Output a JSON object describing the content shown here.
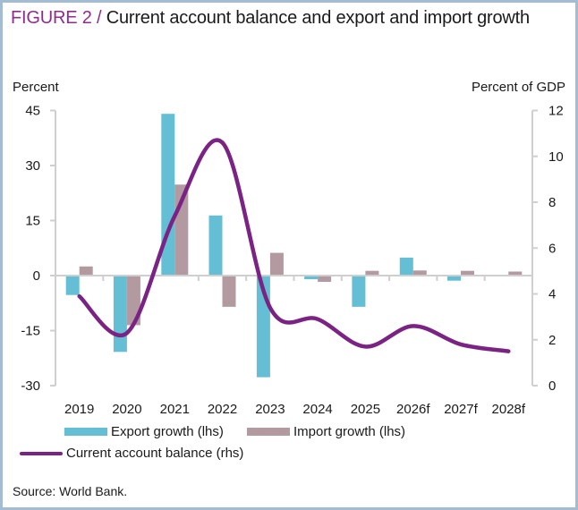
{
  "figure": {
    "label": "FIGURE 2 /",
    "title": " Current account balance and export and import growth",
    "source": "Source: World Bank."
  },
  "colors": {
    "export": "#65bfd4",
    "import": "#b39aa0",
    "current_account": "#7b2385",
    "axis": "#cfcfcf",
    "title_accent": "#8e2c90"
  },
  "chart_data": {
    "type": "bar+line",
    "title": "Current account balance and export and import growth",
    "categories": [
      "2019",
      "2020",
      "2021",
      "2022",
      "2023",
      "2024",
      "2025",
      "2026f",
      "2027f",
      "2028f"
    ],
    "series": [
      {
        "name": "Export growth (lhs)",
        "type": "bar",
        "axis": "left",
        "values": [
          -5.3,
          -20.8,
          44.1,
          16.4,
          -27.7,
          -1.0,
          -8.5,
          4.9,
          -1.4,
          0.0
        ]
      },
      {
        "name": "Import growth (lhs)",
        "type": "bar",
        "axis": "left",
        "values": [
          2.5,
          -13.5,
          24.8,
          -8.5,
          6.2,
          -1.7,
          1.3,
          1.4,
          1.3,
          1.1
        ]
      },
      {
        "name": "Current account balance (rhs)",
        "type": "line",
        "axis": "right",
        "smooth": true,
        "values": [
          3.9,
          2.3,
          7.4,
          10.6,
          3.4,
          2.9,
          1.7,
          2.6,
          1.8,
          1.5
        ]
      }
    ],
    "left_axis": {
      "label": "Percent",
      "ylim": [
        -30,
        45
      ],
      "ticks": [
        45,
        30,
        15,
        0,
        -15,
        -30
      ]
    },
    "right_axis": {
      "label": "Percent of GDP",
      "ylim": [
        0,
        12
      ],
      "ticks": [
        12,
        10,
        8,
        6,
        4,
        2,
        0
      ]
    },
    "grid": false,
    "legend_position": "bottom",
    "legend": [
      "Export growth (lhs)",
      "Import growth (lhs)",
      "Current account balance (rhs)"
    ]
  }
}
